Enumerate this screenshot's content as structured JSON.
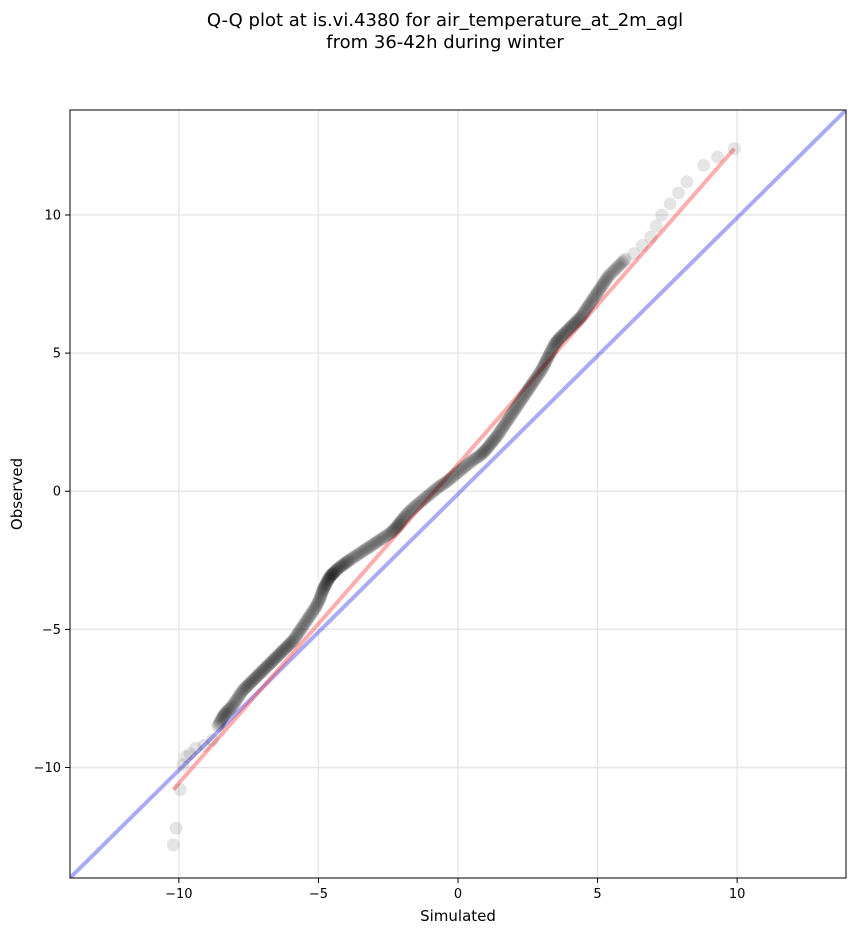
{
  "chart_data": {
    "type": "scatter",
    "title": "Q-Q plot at is.vi.4380 for air_temperature_at_2m_agl",
    "subtitle": "from 36-42h during winter",
    "xlabel": "Simulated",
    "ylabel": "Observed",
    "xlim": [
      -13.9,
      13.9
    ],
    "ylim": [
      -14.0,
      13.8
    ],
    "xticks": [
      -10,
      -5,
      0,
      5,
      10
    ],
    "yticks": [
      -10,
      -5,
      0,
      5,
      10
    ],
    "xtick_labels": [
      "−10",
      "−5",
      "0",
      "5",
      "10"
    ],
    "ytick_labels": [
      "−10",
      "−5",
      "0",
      "5",
      "10"
    ],
    "grid": true,
    "colors": {
      "points": "#000000",
      "identity_line": "#0000e0",
      "fit_line": "#ff3333"
    },
    "series": [
      {
        "kind": "quantile_points",
        "x": [
          -10.2,
          -10.1,
          -9.95,
          -9.85,
          -9.75,
          -9.6,
          -9.4,
          -9.1,
          -8.8,
          -8.6,
          -8.45,
          -8.3,
          -8.1,
          -7.9,
          -7.7,
          -7.5,
          -7.3,
          -7.1,
          -6.9,
          -6.7,
          -6.5,
          -6.3,
          -6.1,
          -5.9,
          -5.7,
          -5.5,
          -5.3,
          -5.1,
          -4.95,
          -4.85,
          -4.75,
          -4.65,
          -4.55,
          -4.45,
          -4.3,
          -4.1,
          -3.9,
          -3.6,
          -3.3,
          -3.0,
          -2.7,
          -2.4,
          -2.2,
          -2.05,
          -1.85,
          -1.6,
          -1.3,
          -1.0,
          -0.7,
          -0.4,
          -0.1,
          0.2,
          0.5,
          0.8,
          1.0,
          1.2,
          1.4,
          1.6,
          1.8,
          2.0,
          2.2,
          2.4,
          2.6,
          2.8,
          3.0,
          3.15,
          3.3,
          3.45,
          3.6,
          3.8,
          4.0,
          4.2,
          4.4,
          4.6,
          4.8,
          5.0,
          5.2,
          5.4,
          5.7,
          6.0,
          6.3,
          6.6,
          6.9,
          7.1,
          7.3,
          7.6,
          7.9,
          8.2,
          8.8,
          9.3,
          9.9
        ],
        "y": [
          -12.8,
          -12.2,
          -10.8,
          -9.9,
          -9.6,
          -9.5,
          -9.3,
          -9.2,
          -9.0,
          -8.5,
          -8.2,
          -8.0,
          -7.8,
          -7.5,
          -7.2,
          -7.0,
          -6.8,
          -6.6,
          -6.4,
          -6.2,
          -6.0,
          -5.8,
          -5.6,
          -5.4,
          -5.1,
          -4.8,
          -4.5,
          -4.2,
          -3.9,
          -3.6,
          -3.4,
          -3.2,
          -3.05,
          -2.95,
          -2.8,
          -2.65,
          -2.5,
          -2.3,
          -2.1,
          -1.9,
          -1.7,
          -1.5,
          -1.3,
          -1.1,
          -0.85,
          -0.6,
          -0.35,
          -0.1,
          0.15,
          0.35,
          0.6,
          0.85,
          1.1,
          1.3,
          1.5,
          1.75,
          2.0,
          2.3,
          2.6,
          2.9,
          3.2,
          3.5,
          3.8,
          4.1,
          4.4,
          4.7,
          5.0,
          5.3,
          5.5,
          5.7,
          5.9,
          6.1,
          6.3,
          6.6,
          6.9,
          7.2,
          7.5,
          7.8,
          8.1,
          8.4,
          8.6,
          8.9,
          9.2,
          9.6,
          10.0,
          10.4,
          10.8,
          11.2,
          11.8,
          12.1,
          12.4
        ]
      },
      {
        "kind": "identity_line",
        "x": [
          -13.9,
          13.9
        ],
        "y": [
          -14.0,
          13.8
        ]
      },
      {
        "kind": "fit_line",
        "x": [
          -10.2,
          9.9
        ],
        "y": [
          -10.8,
          12.4
        ]
      }
    ]
  }
}
